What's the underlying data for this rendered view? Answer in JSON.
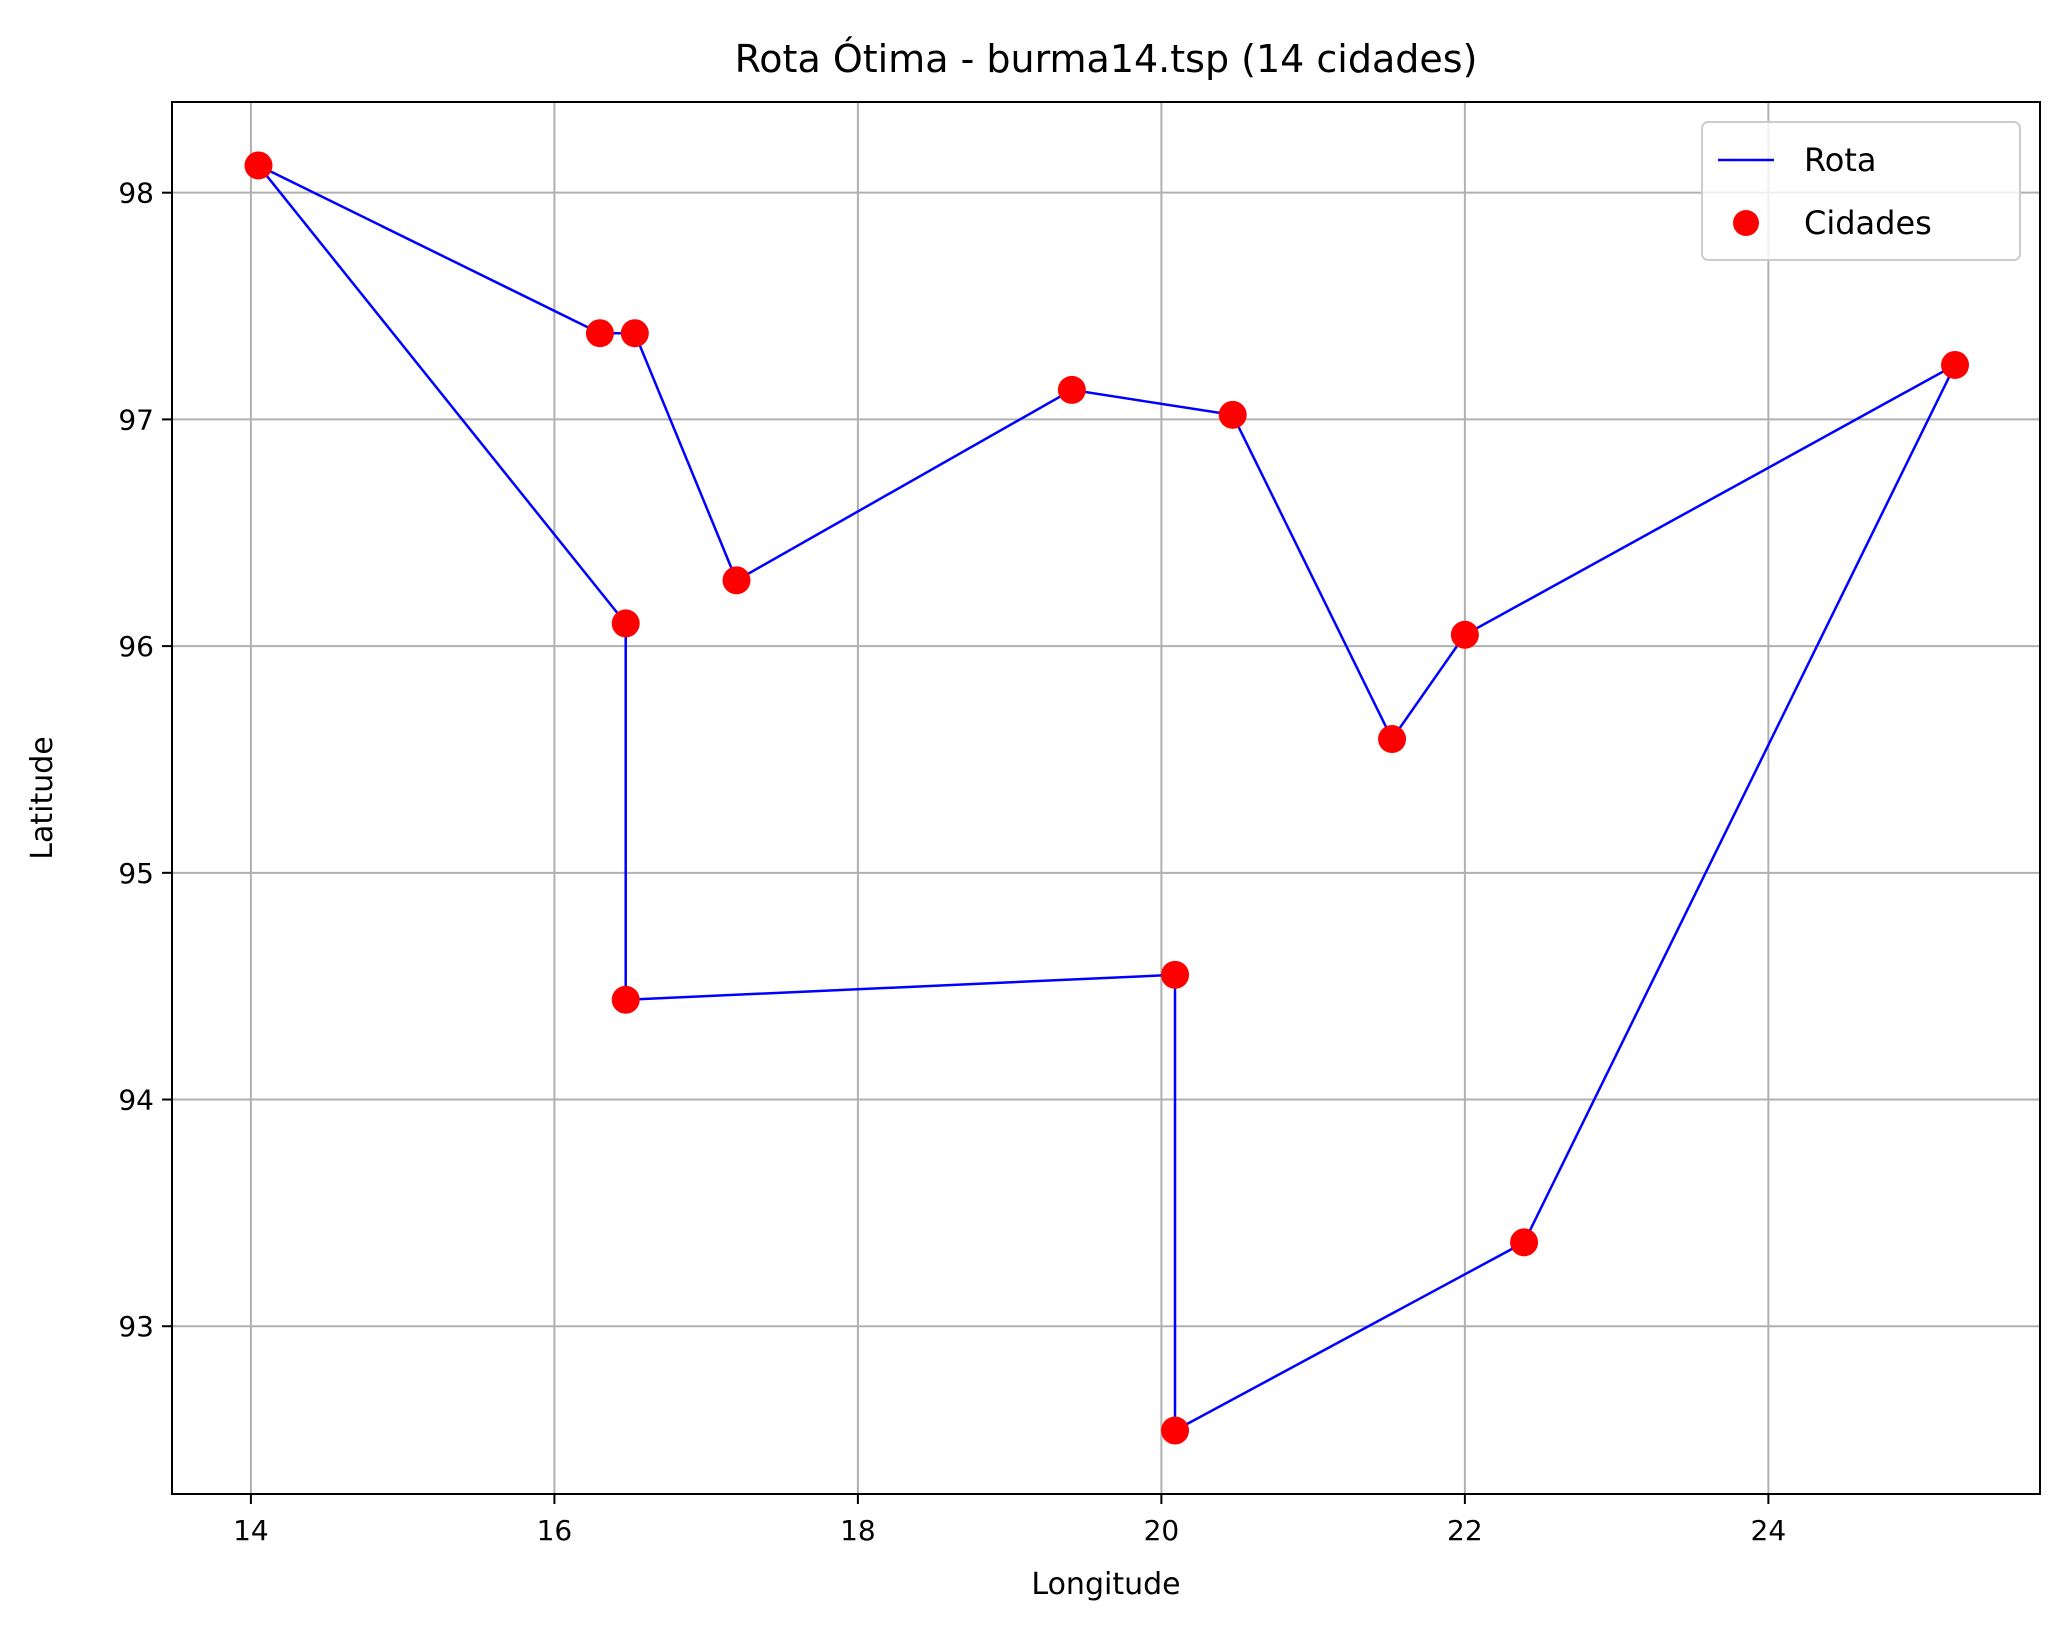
{
  "chart_data": {
    "type": "line",
    "title": "Rota Ótima - burma14.tsp (14 cidades)",
    "xlabel": "Longitude",
    "ylabel": "Latitude",
    "xlim": [
      13.48,
      25.79
    ],
    "ylim": [
      92.26,
      98.4
    ],
    "xticks": [
      "14",
      "16",
      "18",
      "20",
      "22",
      "24"
    ],
    "yticks": [
      "93",
      "94",
      "95",
      "96",
      "97",
      "98"
    ],
    "grid": true,
    "legend_position": "top-right",
    "series": [
      {
        "name": "Rota",
        "type": "line",
        "color": "#0000ff",
        "points": [
          [
            16.47,
            96.1
          ],
          [
            16.47,
            94.44
          ],
          [
            20.09,
            94.55
          ],
          [
            20.09,
            92.54
          ],
          [
            22.39,
            93.37
          ],
          [
            25.23,
            97.24
          ],
          [
            22.0,
            96.05
          ],
          [
            21.52,
            95.59
          ],
          [
            20.47,
            97.02
          ],
          [
            19.41,
            97.13
          ],
          [
            17.2,
            96.29
          ],
          [
            16.53,
            97.38
          ],
          [
            16.3,
            97.38
          ],
          [
            14.05,
            98.12
          ],
          [
            16.47,
            96.1
          ]
        ]
      },
      {
        "name": "Cidades",
        "type": "scatter",
        "color": "#ff0000",
        "points": [
          [
            16.47,
            96.1
          ],
          [
            16.47,
            94.44
          ],
          [
            20.09,
            94.55
          ],
          [
            20.09,
            92.54
          ],
          [
            22.39,
            93.37
          ],
          [
            25.23,
            97.24
          ],
          [
            22.0,
            96.05
          ],
          [
            21.52,
            95.59
          ],
          [
            20.47,
            97.02
          ],
          [
            19.41,
            97.13
          ],
          [
            17.2,
            96.29
          ],
          [
            16.53,
            97.38
          ],
          [
            16.3,
            97.38
          ],
          [
            14.05,
            98.12
          ]
        ]
      }
    ]
  }
}
